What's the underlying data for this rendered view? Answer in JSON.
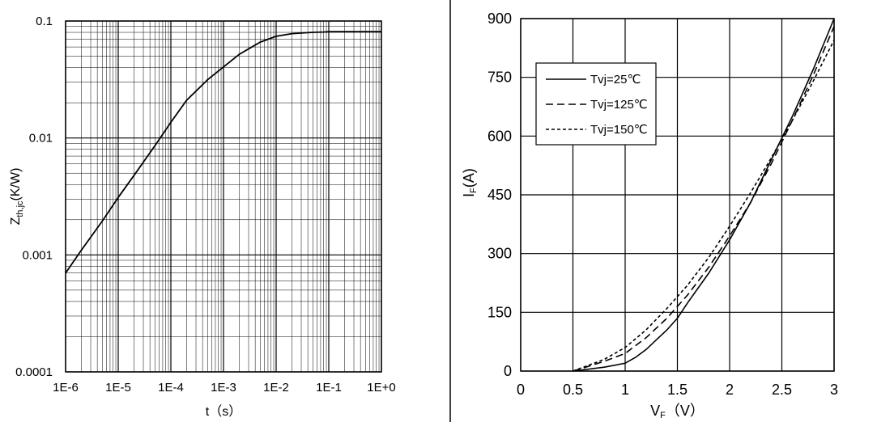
{
  "chart_data": [
    {
      "type": "line",
      "x_scale": "log",
      "y_scale": "log",
      "xlim": [
        1e-06,
        1
      ],
      "ylim": [
        0.0001,
        0.1
      ],
      "xlabel": "t（s）",
      "ylabel_main": "Z",
      "ylabel_sub": "th,jc",
      "ylabel_rest": "(K/W)",
      "x_ticks": [
        {
          "value": 1e-06,
          "label": "1E-6"
        },
        {
          "value": 1e-05,
          "label": "1E-5"
        },
        {
          "value": 0.0001,
          "label": "1E-4"
        },
        {
          "value": 0.001,
          "label": "1E-3"
        },
        {
          "value": 0.01,
          "label": "1E-2"
        },
        {
          "value": 0.1,
          "label": "1E-1"
        },
        {
          "value": 1,
          "label": "1E+0"
        }
      ],
      "y_ticks": [
        {
          "value": 0.0001,
          "label": "0.0001"
        },
        {
          "value": 0.001,
          "label": "0.001"
        },
        {
          "value": 0.01,
          "label": "0.01"
        },
        {
          "value": 0.1,
          "label": "0.1"
        }
      ],
      "grid": true,
      "series": [
        {
          "x": [
            1e-06,
            2e-06,
            5e-06,
            1e-05,
            2e-05,
            5e-05,
            0.0001,
            0.0002,
            0.0005,
            0.001,
            0.002,
            0.005,
            0.01,
            0.02,
            0.05,
            0.08,
            0.1,
            0.15,
            0.2,
            0.5,
            1
          ],
          "y": [
            0.0007,
            0.0011,
            0.00195,
            0.0031,
            0.0048,
            0.0086,
            0.0136,
            0.0211,
            0.0315,
            0.0405,
            0.052,
            0.066,
            0.074,
            0.078,
            0.08,
            0.0805,
            0.081,
            0.081,
            0.081,
            0.081,
            0.081
          ],
          "dash": "solid"
        }
      ]
    },
    {
      "type": "line",
      "xlim": [
        0,
        3
      ],
      "ylim": [
        0,
        900
      ],
      "xlabel_main": "V",
      "xlabel_sub": "F",
      "xlabel_rest": "（V）",
      "ylabel_main": "I",
      "ylabel_sub": "F",
      "ylabel_rest": "(A)",
      "x_ticks": [
        {
          "value": 0,
          "label": "0"
        },
        {
          "value": 0.5,
          "label": "0.5"
        },
        {
          "value": 1,
          "label": "1"
        },
        {
          "value": 1.5,
          "label": "1.5"
        },
        {
          "value": 2,
          "label": "2"
        },
        {
          "value": 2.5,
          "label": "2.5"
        },
        {
          "value": 3,
          "label": "3"
        }
      ],
      "y_ticks": [
        {
          "value": 0,
          "label": "0"
        },
        {
          "value": 150,
          "label": "150"
        },
        {
          "value": 300,
          "label": "300"
        },
        {
          "value": 450,
          "label": "450"
        },
        {
          "value": 600,
          "label": "600"
        },
        {
          "value": 750,
          "label": "750"
        },
        {
          "value": 900,
          "label": "900"
        }
      ],
      "grid": true,
      "legend_position": "top-left",
      "series": [
        {
          "name": "Tvj=25℃",
          "dash": "solid",
          "x": [
            0.5,
            0.8,
            1.0,
            1.1,
            1.2,
            1.3,
            1.4,
            1.5,
            1.6,
            1.8,
            2.0,
            2.2,
            2.4,
            2.6,
            2.8,
            3.0
          ],
          "y": [
            0,
            10,
            20,
            35,
            55,
            80,
            105,
            135,
            175,
            250,
            335,
            430,
            540,
            650,
            770,
            900
          ]
        },
        {
          "name": "Tvj=125℃",
          "dash": "dashed",
          "x": [
            0.5,
            0.6,
            0.8,
            1.0,
            1.2,
            1.4,
            1.6,
            1.8,
            2.0,
            2.2,
            2.4,
            2.6,
            2.8,
            3.0
          ],
          "y": [
            0,
            8,
            25,
            45,
            85,
            135,
            195,
            265,
            345,
            430,
            530,
            640,
            755,
            880
          ]
        },
        {
          "name": "Tvj=150℃",
          "dash": "short-dash",
          "x": [
            0.5,
            0.6,
            0.8,
            1.0,
            1.2,
            1.4,
            1.6,
            1.8,
            2.0,
            2.2,
            2.4,
            2.6,
            2.8,
            3.0
          ],
          "y": [
            0,
            10,
            30,
            60,
            105,
            160,
            220,
            290,
            370,
            455,
            545,
            640,
            740,
            845
          ]
        }
      ]
    }
  ]
}
